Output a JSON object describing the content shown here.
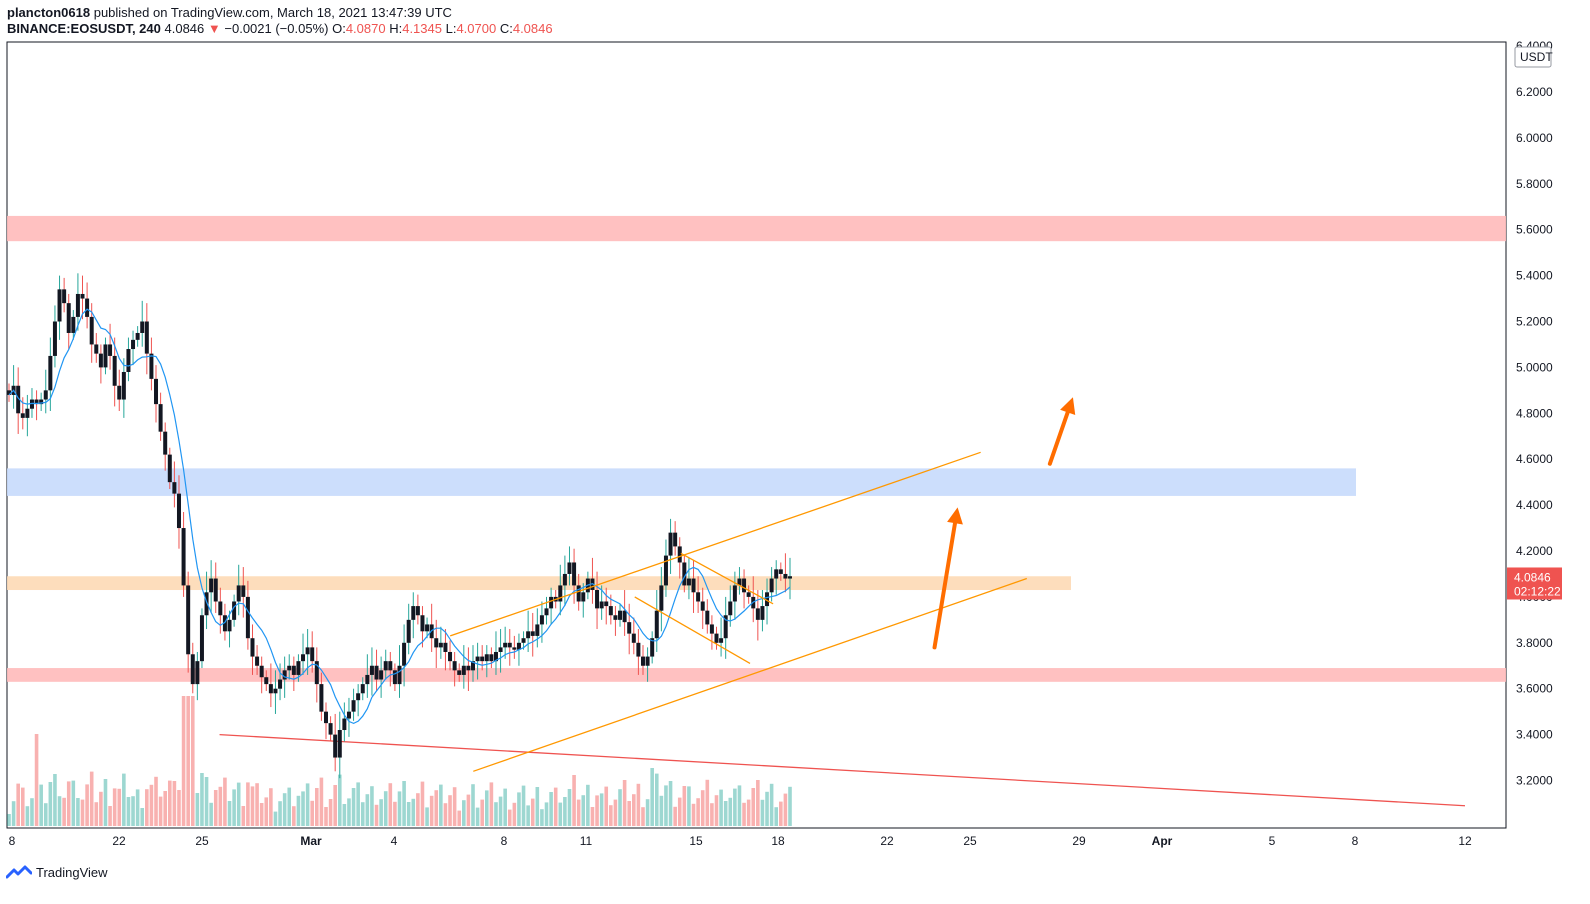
{
  "header": {
    "author": "plancton0618",
    "published_text": "published on TradingView.com, March 18, 2021 13:47:39 UTC",
    "symbol": "BINANCE:EOSUSDT, 240",
    "last": "4.0846",
    "arrow": "▼",
    "change": "−0.0021 (−0.05%)",
    "o_label": "O:",
    "o_value": "4.0870",
    "h_label": "H:",
    "h_value": "4.1345",
    "l_label": "L:",
    "l_value": "4.0700",
    "c_label": "C:",
    "c_value": "4.0846"
  },
  "price_axis": {
    "currency": "USDT",
    "ticks": [
      "6.4000",
      "6.2000",
      "6.0000",
      "5.8000",
      "5.6000",
      "5.4000",
      "5.2000",
      "5.0000",
      "4.8000",
      "4.6000",
      "4.4000",
      "4.2000",
      "4.0000",
      "3.8000",
      "3.6000",
      "3.4000",
      "3.2000"
    ],
    "last_price": "4.0846",
    "countdown": "02:12:22"
  },
  "time_axis": {
    "ticks": [
      "8",
      "22",
      "25",
      "Mar",
      "4",
      "8",
      "11",
      "15",
      "18",
      "22",
      "25",
      "29",
      "Apr",
      "5",
      "8",
      "12"
    ]
  },
  "footer": {
    "brand": "TradingView"
  },
  "colors": {
    "up": "#26a69a",
    "down": "#ef5350",
    "candle_body": "#131722",
    "ma": "#2196f3",
    "channel": "#ff9800",
    "arrow": "#ff6d00",
    "resistance_zone": "#ffbaba",
    "supply_zone": "#c6dafc",
    "pivot_zone": "#fdd9b5",
    "trendline": "#ef5350"
  },
  "chart_data": {
    "type": "candlestick",
    "title": "EOSUSDT 240",
    "x_unit": "date (4h candles)",
    "ylim": [
      3.0,
      6.4
    ],
    "zones": [
      {
        "name": "resistance",
        "from": 5.55,
        "to": 5.66,
        "color": "#ffbaba"
      },
      {
        "name": "supply",
        "from": 4.44,
        "to": 4.56,
        "color": "#c6dafc"
      },
      {
        "name": "pivot",
        "from": 4.03,
        "to": 4.09,
        "color": "#fdd9b5"
      },
      {
        "name": "support",
        "from": 3.63,
        "to": 3.69,
        "color": "#ffbaba"
      }
    ],
    "channel": {
      "upper": [
        {
          "x": "2021-02-27",
          "y": 3.83
        },
        {
          "x": "2021-03-22",
          "y": 4.63
        }
      ],
      "lower": [
        {
          "x": "2021-02-28",
          "y": 3.24
        },
        {
          "x": "2021-03-24",
          "y": 4.08
        }
      ]
    },
    "flag": {
      "upper": [
        {
          "x": "2021-03-09",
          "y": 4.19
        },
        {
          "x": "2021-03-13",
          "y": 3.97
        }
      ],
      "lower": [
        {
          "x": "2021-03-07",
          "y": 4.0
        },
        {
          "x": "2021-03-12",
          "y": 3.71
        }
      ]
    },
    "trendline": [
      {
        "x": "2021-02-17",
        "y": 3.4
      },
      {
        "x": "2021-04-12",
        "y": 3.09
      }
    ],
    "arrows": [
      {
        "from": {
          "x": "2021-03-20",
          "y": 3.78
        },
        "to": {
          "x": "2021-03-21",
          "y": 4.39
        }
      },
      {
        "from": {
          "x": "2021-03-25",
          "y": 4.58
        },
        "to": {
          "x": "2021-03-26",
          "y": 4.87
        }
      }
    ],
    "closes": [
      4.88,
      4.92,
      4.8,
      4.78,
      4.82,
      4.86,
      4.84,
      4.86,
      4.9,
      5.05,
      5.2,
      5.34,
      5.28,
      5.15,
      5.22,
      5.32,
      5.3,
      5.22,
      5.1,
      5.06,
      5.0,
      5.1,
      5.05,
      4.92,
      4.86,
      4.98,
      5.08,
      5.12,
      5.15,
      5.2,
      5.06,
      4.95,
      4.84,
      4.72,
      4.62,
      4.5,
      4.45,
      4.3,
      4.05,
      3.75,
      3.62,
      3.72,
      3.92,
      4.02,
      4.08,
      3.98,
      3.92,
      3.85,
      3.9,
      3.98,
      4.05,
      4.0,
      3.82,
      3.74,
      3.7,
      3.65,
      3.62,
      3.58,
      3.6,
      3.64,
      3.68,
      3.7,
      3.66,
      3.72,
      3.75,
      3.78,
      3.72,
      3.62,
      3.5,
      3.45,
      3.4,
      3.3,
      3.42,
      3.47,
      3.5,
      3.55,
      3.58,
      3.62,
      3.66,
      3.7,
      3.64,
      3.68,
      3.72,
      3.68,
      3.62,
      3.7,
      3.8,
      3.9,
      3.96,
      3.92,
      3.85,
      3.88,
      3.82,
      3.78,
      3.8,
      3.76,
      3.72,
      3.68,
      3.66,
      3.7,
      3.68,
      3.72,
      3.74,
      3.72,
      3.75,
      3.72,
      3.76,
      3.78,
      3.8,
      3.78,
      3.77,
      3.8,
      3.82,
      3.85,
      3.83,
      3.88,
      3.92,
      3.95,
      4.0,
      3.98,
      4.05,
      4.1,
      4.15,
      4.05,
      3.98,
      4.02,
      4.08,
      4.03,
      3.95,
      3.98,
      3.96,
      3.92,
      3.9,
      3.94,
      3.89,
      3.84,
      3.8,
      3.74,
      3.7,
      3.74,
      3.82,
      3.94,
      4.05,
      4.18,
      4.28,
      4.22,
      4.15,
      4.05,
      4.08,
      4.02,
      3.98,
      3.94,
      3.88,
      3.84,
      3.8,
      3.82,
      3.92,
      3.98,
      4.05,
      4.08,
      4.02,
      4.0,
      3.95,
      3.9,
      3.96,
      4.02,
      4.08,
      4.12,
      4.1,
      4.08,
      4.09
    ]
  }
}
